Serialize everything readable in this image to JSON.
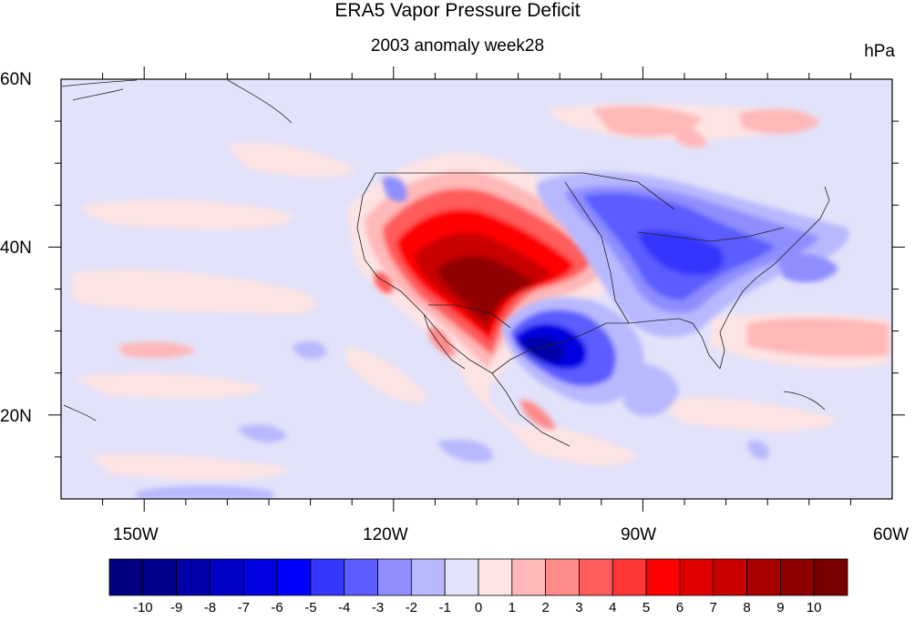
{
  "title": "ERA5 Vapor Pressure Deficit",
  "subtitle": "2003 anomaly week28",
  "units": "hPa",
  "map": {
    "projection": "cylindrical-equidistant",
    "lon_range": [
      -160,
      -60
    ],
    "lat_range": [
      10,
      60
    ],
    "lat_ticks": [
      {
        "value": 60,
        "label": "60N"
      },
      {
        "value": 40,
        "label": "40N"
      },
      {
        "value": 20,
        "label": "20N"
      }
    ],
    "lon_ticks": [
      {
        "value": -150,
        "label": "150W"
      },
      {
        "value": -120,
        "label": "120W"
      },
      {
        "value": -90,
        "label": "90W"
      },
      {
        "value": -60,
        "label": "60W"
      }
    ]
  },
  "colorbar": {
    "labels": [
      "-10",
      "-9",
      "-8",
      "-7",
      "-6",
      "-5",
      "-4",
      "-3",
      "-2",
      "-1",
      "0",
      "1",
      "2",
      "3",
      "4",
      "5",
      "6",
      "7",
      "8",
      "9",
      "10"
    ],
    "colors": [
      "#000080",
      "#00008f",
      "#0000a8",
      "#0000c8",
      "#0000e0",
      "#0000ff",
      "#3636ff",
      "#5c5cff",
      "#8e8eff",
      "#b8b8ff",
      "#e2e2fa",
      "#fde4e4",
      "#ffb8b8",
      "#ff8a8a",
      "#ff5c5c",
      "#ff3636",
      "#ff0000",
      "#e00000",
      "#c80000",
      "#a80000",
      "#900000",
      "#780000"
    ]
  }
}
